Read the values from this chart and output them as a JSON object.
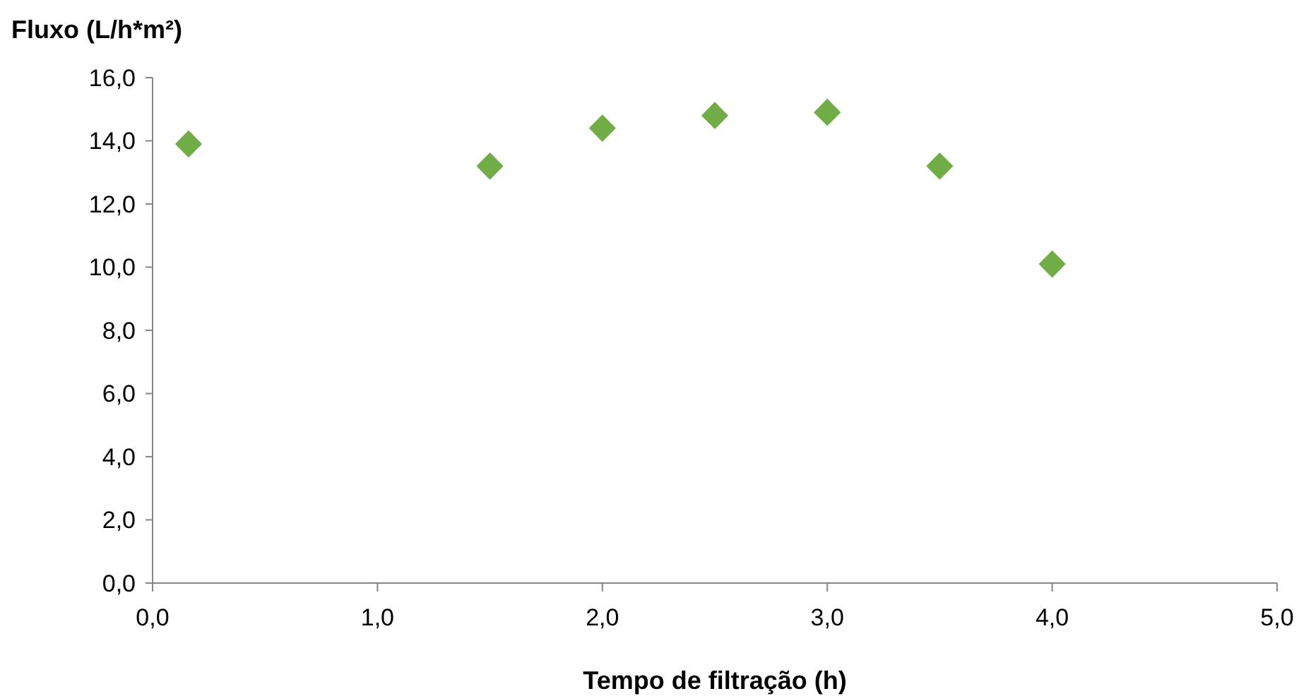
{
  "chart_data": {
    "type": "scatter",
    "xlabel": "Tempo de filtração (h)",
    "ylabel": "Fluxo (L/h*m²)",
    "x": [
      0.16,
      1.5,
      2.0,
      2.5,
      3.0,
      3.5,
      4.0
    ],
    "series": [
      {
        "color": "#70ad47",
        "values": [
          13.9,
          13.2,
          14.4,
          14.8,
          14.9,
          13.2,
          10.1
        ]
      }
    ],
    "xlim": [
      0,
      5
    ],
    "ylim": [
      0,
      16
    ],
    "xticks": [
      {
        "value": 0,
        "label": "0,0"
      },
      {
        "value": 1,
        "label": "1,0"
      },
      {
        "value": 2,
        "label": "2,0"
      },
      {
        "value": 3,
        "label": "3,0"
      },
      {
        "value": 4,
        "label": "4,0"
      },
      {
        "value": 5,
        "label": "5,0"
      }
    ],
    "yticks": [
      {
        "value": 0,
        "label": "0,0"
      },
      {
        "value": 2,
        "label": "2,0"
      },
      {
        "value": 4,
        "label": "4,0"
      },
      {
        "value": 6,
        "label": "6,0"
      },
      {
        "value": 8,
        "label": "8,0"
      },
      {
        "value": 10,
        "label": "10,0"
      },
      {
        "value": 12,
        "label": "12,0"
      },
      {
        "value": 14,
        "label": "14,0"
      },
      {
        "value": 16,
        "label": "16,0"
      }
    ],
    "grid": false,
    "marker": "diamond"
  }
}
